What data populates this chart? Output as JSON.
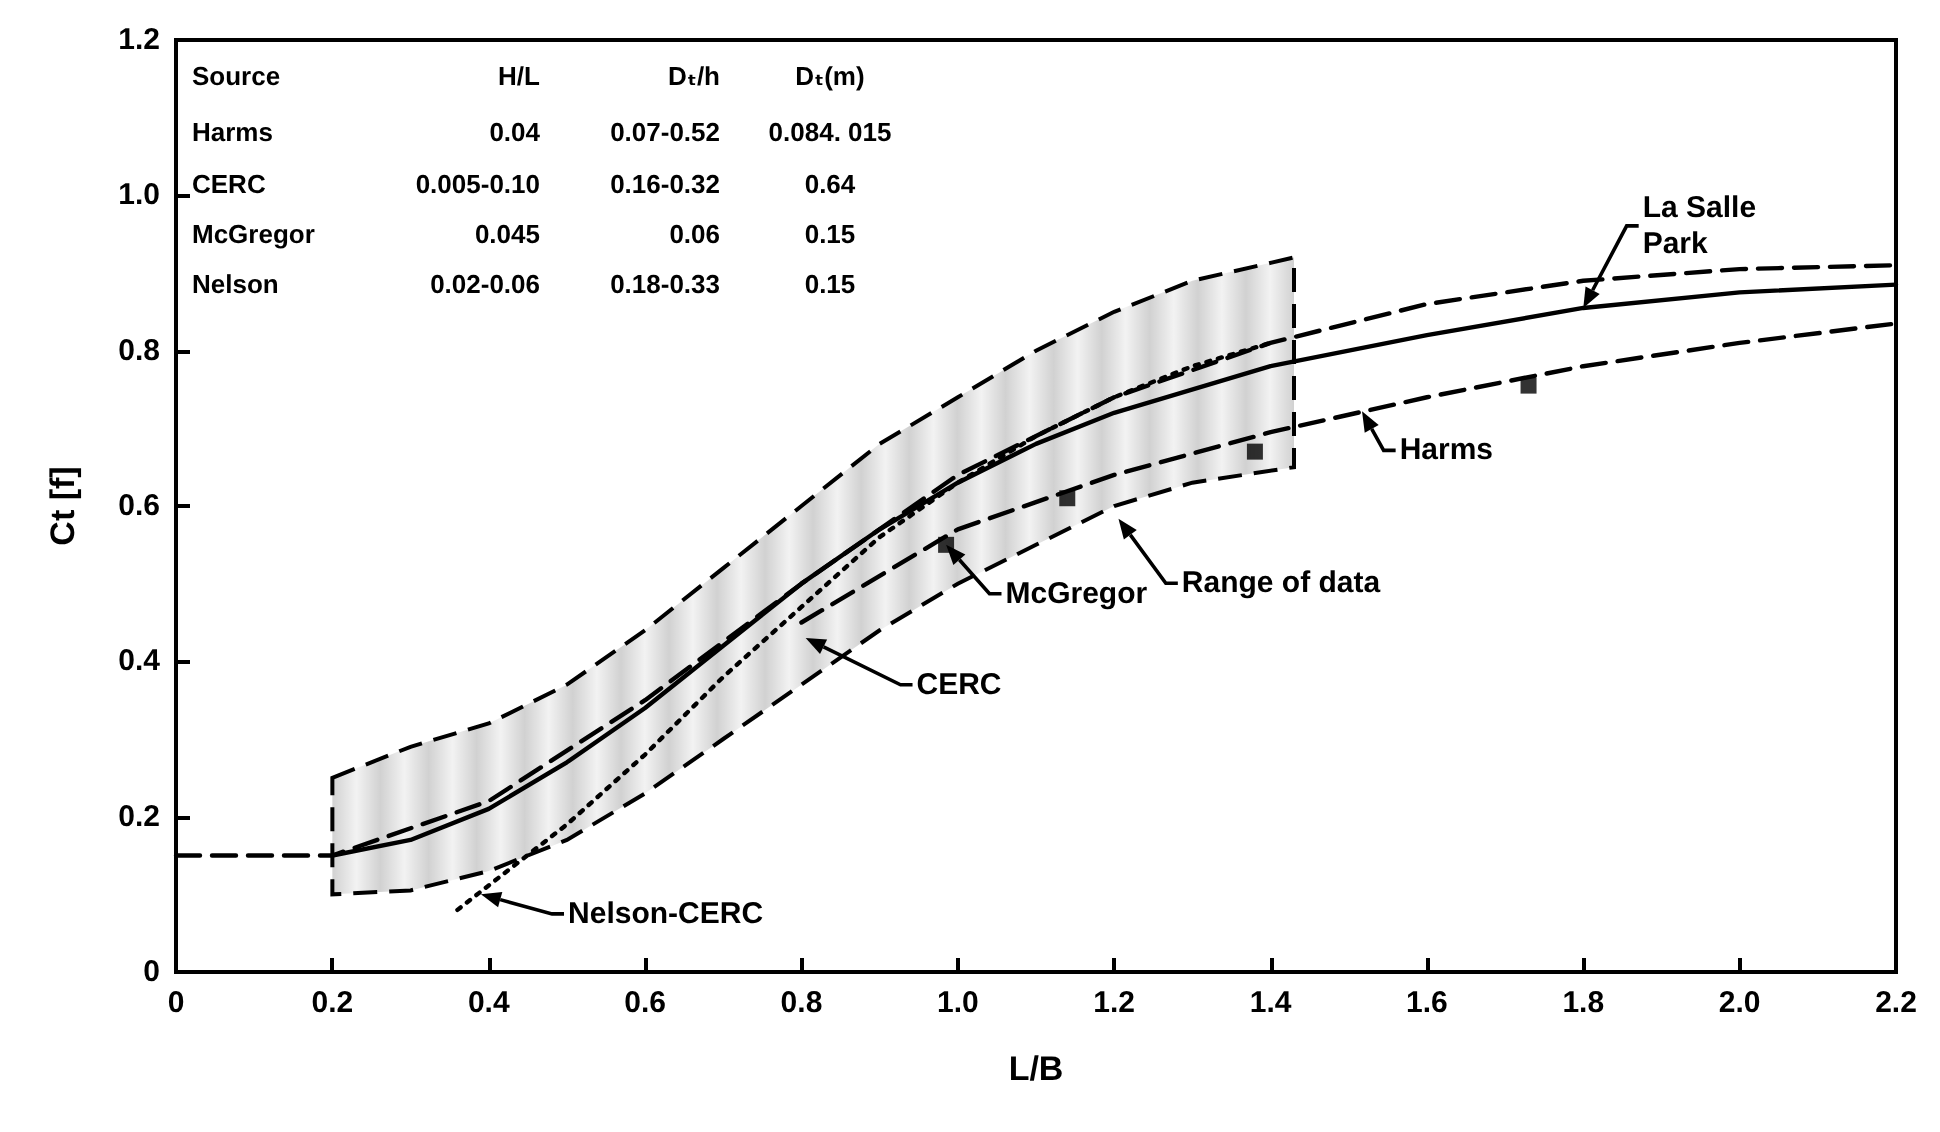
{
  "chart_data": {
    "type": "line",
    "xlabel": "L/B",
    "ylabel": "Ct [f]",
    "xlim": [
      0,
      2.2
    ],
    "xticks": [
      0,
      0.2,
      0.4,
      0.6,
      0.8,
      {
        "value": 1,
        "label": "1.0"
      },
      1.2,
      1.4,
      1.6,
      1.8,
      {
        "value": 2,
        "label": "2.0"
      },
      2.2
    ],
    "ylim": [
      0,
      1.2
    ],
    "yticks": [
      0,
      0.2,
      0.4,
      0.6,
      0.8,
      {
        "value": 1,
        "label": "1.0"
      },
      1.2
    ],
    "grid": false,
    "marker": "none",
    "series": [
      {
        "type": "area",
        "color": "#000000",
        "line_style": "dashed",
        "x": [
          0.2,
          0.3,
          0.4,
          0.5,
          0.6,
          0.7,
          0.8,
          0.9,
          1.0,
          1.1,
          1.2,
          1.3,
          1.43
        ],
        "values": [
          null,
          null,
          null,
          null,
          null,
          null,
          null,
          null,
          null,
          null,
          null,
          null,
          null
        ],
        "lower": [
          0.1,
          0.105,
          0.13,
          0.17,
          0.23,
          0.3,
          0.37,
          0.44,
          0.5,
          0.55,
          0.6,
          0.63,
          0.65
        ],
        "upper": [
          0.25,
          0.29,
          0.32,
          0.37,
          0.44,
          0.52,
          0.6,
          0.68,
          0.74,
          0.8,
          0.85,
          0.89,
          0.92
        ]
      },
      {
        "color": "#000000",
        "line_style": "solid",
        "x": [
          0.2,
          0.3,
          0.4,
          0.5,
          0.6,
          0.7,
          0.8,
          0.9,
          1.0,
          1.1,
          1.2,
          1.4,
          1.6,
          1.8,
          2.0,
          2.2
        ],
        "values": [
          0.15,
          0.17,
          0.21,
          0.27,
          0.34,
          0.42,
          0.5,
          0.57,
          0.63,
          0.68,
          0.72,
          0.78,
          0.82,
          0.855,
          0.875,
          0.885
        ]
      },
      {
        "color": "#000000",
        "line_style": "dashed",
        "x": [
          0,
          0.2,
          0.4,
          0.6,
          0.8,
          1.0,
          1.2,
          1.4,
          1.6,
          1.8,
          2.0,
          2.2
        ],
        "values": [
          0.15,
          0.15,
          0.22,
          0.35,
          0.5,
          0.64,
          0.74,
          0.81,
          0.86,
          0.89,
          0.905,
          0.91
        ]
      },
      {
        "color": "#000000",
        "line_style": "dashed",
        "x": [
          0.8,
          1.0,
          1.2,
          1.4,
          1.6,
          1.8,
          2.0,
          2.2
        ],
        "values": [
          0.45,
          0.57,
          0.64,
          0.695,
          0.74,
          0.78,
          0.81,
          0.835
        ]
      },
      {
        "color": "#000000",
        "line_style": "dotted",
        "x": [
          0.36,
          0.5,
          0.6,
          0.7,
          0.8,
          0.9,
          1.0,
          1.1,
          1.2,
          1.3,
          1.4
        ],
        "values": [
          0.08,
          0.19,
          0.28,
          0.38,
          0.47,
          0.56,
          0.63,
          0.69,
          0.74,
          0.78,
          0.81
        ]
      },
      {
        "type": "scatter",
        "color": "#000000",
        "marker": "square",
        "x": [
          0.985,
          1.14,
          1.38,
          1.73
        ],
        "values": [
          0.55,
          0.61,
          0.67,
          0.755
        ]
      }
    ],
    "annotations": [
      "Source",
      "H/L",
      "Dₜ/h",
      "Dₜ(m)",
      "Harms",
      "0.04",
      "0.07-0.52",
      "0.084. 015",
      "CERC",
      "0.005-0.10",
      "0.16-0.32",
      "0.64",
      "McGregor",
      "0.045",
      "0.06",
      "0.15",
      "Nelson",
      "0.02-0.06",
      "0.18-0.33",
      "0.15",
      {
        "text": "Nelson-CERC",
        "x": 0.39,
        "y": 0.1
      },
      "CERC",
      {
        "text": "McGregor",
        "x": 0.985,
        "y": 0.55
      },
      "Range of data",
      "Harms",
      {
        "text": "La Salle\nPark",
        "x": 1.8,
        "y": 0.855
      }
    ]
  }
}
